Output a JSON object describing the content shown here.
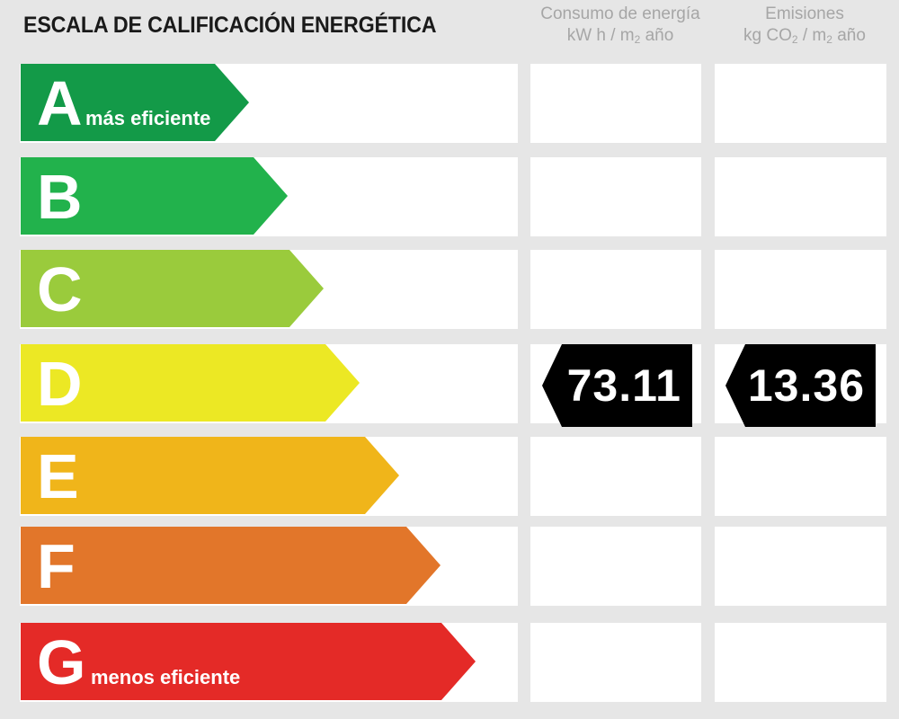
{
  "title": "ESCALA DE CALIFICACIÓN ENERGÉTICA",
  "columns": {
    "energy": {
      "line1": "Consumo de energía",
      "line2_pre": "kW h / m",
      "line2_sub": "2",
      "line2_post": " año"
    },
    "emissions": {
      "line1": "Emisiones",
      "line2_pre": "kg CO",
      "line2_sub": "2",
      "line2_mid": " / m",
      "line2_sub2": "2",
      "line2_post": " año"
    }
  },
  "ratings": [
    {
      "letter": "A",
      "label": "más eficiente",
      "color": "#139a48"
    },
    {
      "letter": "B",
      "label": "",
      "color": "#22b24c"
    },
    {
      "letter": "C",
      "label": "",
      "color": "#9acb3c"
    },
    {
      "letter": "D",
      "label": "",
      "color": "#ece824"
    },
    {
      "letter": "E",
      "label": "",
      "color": "#f0b51a"
    },
    {
      "letter": "F",
      "label": "",
      "color": "#e2762a"
    },
    {
      "letter": "G",
      "label": "menos eficiente",
      "color": "#e42a27"
    }
  ],
  "current": {
    "rating": "D",
    "energy_value": "73.11",
    "emissions_value": "13.36"
  }
}
